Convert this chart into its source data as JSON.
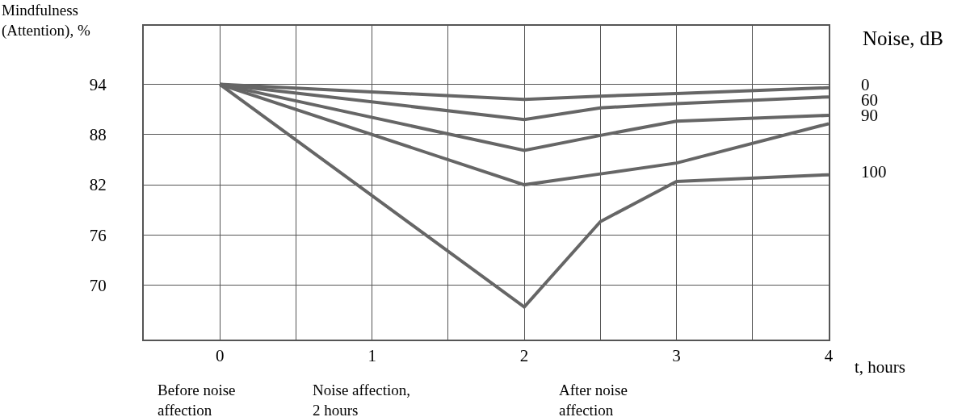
{
  "chart_data": {
    "type": "line",
    "ylabel": "Mindfulness (Attention), %",
    "xlabel": "t, hours",
    "legend_title": "Noise, dB",
    "x": [
      0,
      2,
      2.5,
      3,
      4
    ],
    "series": [
      {
        "name": "0",
        "color": "#666666",
        "values": [
          94,
          92.2,
          92.6,
          92.9,
          93.6
        ]
      },
      {
        "name": "60",
        "color": "#666666",
        "values": [
          94,
          89.8,
          91.2,
          91.7,
          92.5
        ]
      },
      {
        "name": "90",
        "color": "#666666",
        "values": [
          94,
          86.1,
          87.9,
          89.6,
          90.3
        ]
      },
      {
        "color": "#666666",
        "values": [
          94,
          82,
          83.3,
          84.6,
          89.3
        ]
      },
      {
        "name": "100",
        "color": "#666666",
        "values": [
          94,
          67.4,
          77.6,
          82.4,
          83.2
        ]
      }
    ],
    "xlim": [
      -0.5,
      4
    ],
    "xticks": [
      0,
      {
        "value": 0.5,
        "label": null
      },
      1,
      {
        "value": 1.5,
        "label": null
      },
      2,
      {
        "value": 2.5,
        "label": null
      },
      3,
      {
        "value": 3.5,
        "label": null
      },
      4
    ],
    "ylim": [
      63.5,
      101
    ],
    "yticks": [
      70,
      76,
      82,
      88,
      94
    ],
    "grid": true,
    "legend": false,
    "marker": "none",
    "line_style": "solid",
    "annotations": [
      "Before noise affection",
      "Noise affection, 2 hours",
      "After noise affection"
    ]
  }
}
